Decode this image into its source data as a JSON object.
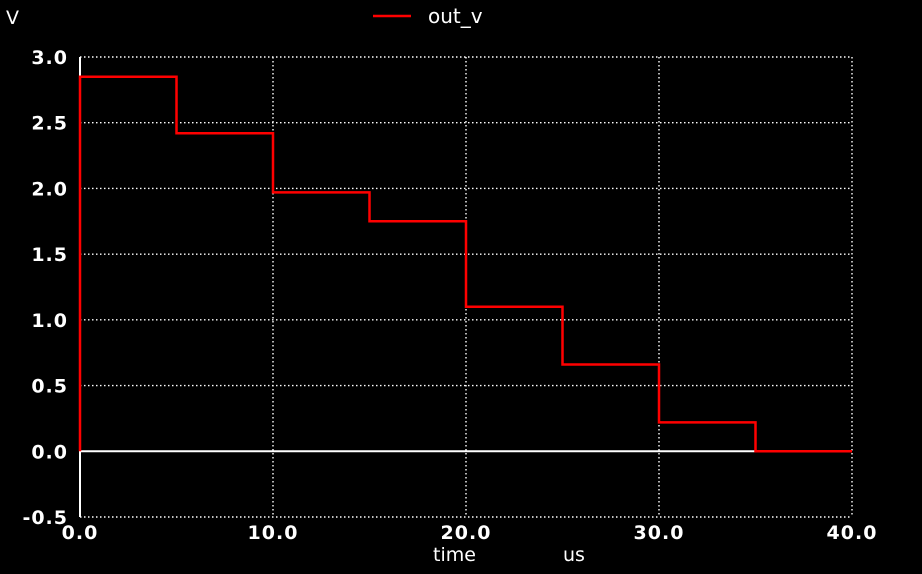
{
  "chart_data": {
    "type": "line",
    "title": "",
    "xlabel": "time",
    "xunit": "us",
    "ylabel": "V",
    "xlim": [
      0,
      40
    ],
    "ylim": [
      -0.5,
      3.0
    ],
    "x_ticks": [
      "0.0",
      "10.0",
      "20.0",
      "30.0",
      "40.0"
    ],
    "x_tick_values": [
      0,
      10,
      20,
      30,
      40
    ],
    "y_ticks": [
      "3.0",
      "2.5",
      "2.0",
      "1.5",
      "1.0",
      "0.5",
      "0.0",
      "-0.5"
    ],
    "y_tick_values": [
      3.0,
      2.5,
      2.0,
      1.5,
      1.0,
      0.5,
      0.0,
      -0.5
    ],
    "grid": true,
    "legend_placement": "top-center",
    "background_color": "#000000",
    "axis_color": "#ffffff",
    "series": [
      {
        "name": "out_v",
        "color": "#ff0000",
        "step": true,
        "x": [
          0,
          0,
          5,
          5,
          10,
          10,
          15,
          15,
          20,
          20,
          25,
          25,
          30,
          30,
          35,
          35,
          40
        ],
        "y": [
          0,
          2.85,
          2.85,
          2.42,
          2.42,
          1.97,
          1.97,
          1.75,
          1.75,
          1.1,
          1.1,
          0.66,
          0.66,
          0.22,
          0.22,
          0.0,
          0.0
        ]
      }
    ]
  }
}
